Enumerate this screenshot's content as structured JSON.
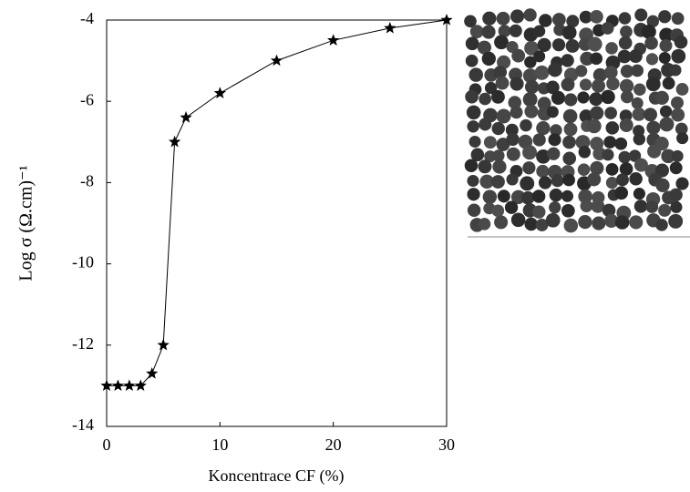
{
  "chart_data": {
    "type": "line",
    "x_label": "Koncentrace CF (%)",
    "y_label": "Log σ (Ω.cm)⁻¹",
    "x": [
      0,
      1,
      2,
      3,
      4,
      5,
      6,
      7,
      10,
      15,
      20,
      25,
      30
    ],
    "series": [
      {
        "color": "#000000",
        "values": [
          -13,
          -13,
          -13,
          -13,
          -12.7,
          -12,
          -7,
          -6.4,
          -5.8,
          -5.0,
          -4.5,
          -4.2,
          -4.0
        ]
      }
    ],
    "xlim": [
      0,
      30
    ],
    "xticks": [
      0,
      10,
      20,
      30
    ],
    "ylim": [
      -14,
      -4
    ],
    "yticks": [
      -14,
      -12,
      -10,
      -8,
      -6,
      -4
    ]
  }
}
